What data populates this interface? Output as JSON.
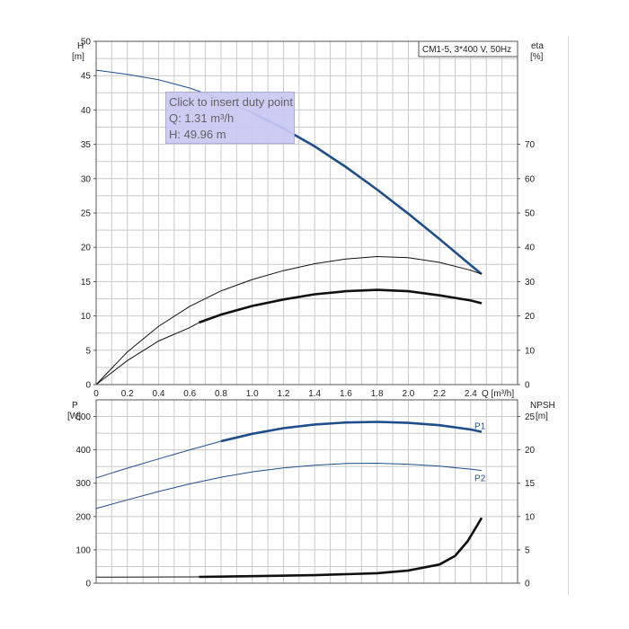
{
  "chart_data": [
    {
      "type": "line",
      "legend": "CM1-5, 3*400 V, 50Hz",
      "xlabel": "Q [m³/h]",
      "x_ticks": [
        "0",
        "0.2",
        "0.4",
        "0.6",
        "0.8",
        "1.0",
        "1.2",
        "1.4",
        "1.6",
        "1.8",
        "2.0",
        "2.2",
        "2.4"
      ],
      "xlim": [
        0,
        2.7
      ],
      "ylabel_left": [
        "H",
        "[m]"
      ],
      "ylim_left": [
        0,
        50
      ],
      "y_ticks_left": [
        "0",
        "5",
        "10",
        "15",
        "20",
        "25",
        "30",
        "35",
        "40",
        "45",
        "50"
      ],
      "ylabel_right": [
        "eta",
        "[%]"
      ],
      "ylim_right": [
        0,
        100
      ],
      "y_ticks_right": [
        "0",
        "10",
        "20",
        "30",
        "40",
        "50",
        "60",
        "70"
      ],
      "grid": true,
      "series": [
        {
          "axis": "left",
          "color": "#1f4e8c",
          "x": [
            0,
            0.2,
            0.4,
            0.6,
            0.8,
            1.0,
            1.2,
            1.4,
            1.6,
            1.8,
            2.0,
            2.2,
            2.4,
            2.47
          ],
          "y": [
            45.8,
            45.2,
            44.4,
            43.2,
            41.6,
            39.6,
            37.3,
            34.7,
            31.7,
            28.4,
            24.9,
            21.2,
            17.4,
            16.1
          ],
          "thick_from": 0.9
        },
        {
          "axis": "right",
          "color": "#111111",
          "x": [
            0,
            0.2,
            0.4,
            0.6,
            0.8,
            1.0,
            1.2,
            1.4,
            1.6,
            1.8,
            2.0,
            2.2,
            2.4,
            2.47
          ],
          "y": [
            0,
            9.5,
            17.0,
            22.8,
            27.3,
            30.6,
            33.2,
            35.2,
            36.6,
            37.3,
            37.0,
            35.6,
            33.3,
            32.2
          ],
          "thick_from": null
        },
        {
          "axis": "right",
          "color": "#111111",
          "x": [
            0,
            0.2,
            0.4,
            0.6,
            0.66,
            0.8,
            1.0,
            1.2,
            1.4,
            1.6,
            1.8,
            2.0,
            2.2,
            2.4,
            2.47
          ],
          "y": [
            0,
            7.0,
            12.7,
            16.6,
            18.1,
            20.4,
            22.9,
            24.8,
            26.3,
            27.2,
            27.6,
            27.2,
            26.0,
            24.5,
            23.7
          ],
          "thick_from": 0.66
        }
      ]
    },
    {
      "type": "line",
      "ylabel_left": [
        "P",
        "[W]"
      ],
      "ylim_left": [
        0,
        550
      ],
      "y_ticks_left": [
        "0",
        "100",
        "200",
        "300",
        "400",
        "500"
      ],
      "ylabel_right": [
        "NPSH",
        "[m]"
      ],
      "ylim_right": [
        0,
        27.5
      ],
      "y_ticks_right": [
        "0",
        "5",
        "10",
        "15",
        "20",
        "25"
      ],
      "xlim": [
        0,
        2.7
      ],
      "grid": true,
      "series": [
        {
          "name": "P1",
          "axis": "left",
          "color": "#1f4e8c",
          "x": [
            0,
            0.2,
            0.4,
            0.6,
            0.8,
            1.0,
            1.2,
            1.4,
            1.6,
            1.8,
            2.0,
            2.2,
            2.4,
            2.47
          ],
          "y": [
            316,
            345,
            373,
            400,
            426,
            448,
            465,
            476,
            482,
            484,
            481,
            474,
            461,
            454
          ],
          "thick_from": 0.66
        },
        {
          "name": "P2",
          "axis": "left",
          "color": "#1f4e8c",
          "x": [
            0,
            0.2,
            0.4,
            0.6,
            0.8,
            1.0,
            1.2,
            1.4,
            1.6,
            1.8,
            2.0,
            2.2,
            2.4,
            2.47
          ],
          "y": [
            224,
            250,
            275,
            298,
            318,
            334,
            346,
            354,
            359,
            360,
            357,
            351,
            342,
            338
          ],
          "thick_from": null
        },
        {
          "axis": "right",
          "color": "#111111",
          "x": [
            0,
            0.66,
            1.0,
            1.4,
            1.8,
            2.0,
            2.2,
            2.3,
            2.38,
            2.44,
            2.47
          ],
          "y": [
            0.9,
            0.95,
            1.05,
            1.2,
            1.5,
            1.9,
            2.8,
            4.1,
            6.3,
            8.6,
            9.8
          ],
          "thick_from": 0.66
        }
      ]
    }
  ],
  "tooltip": {
    "line1": "Click to insert duty point",
    "line2": "Q: 1.31 m³/h",
    "line3": "H: 49.96 m"
  }
}
